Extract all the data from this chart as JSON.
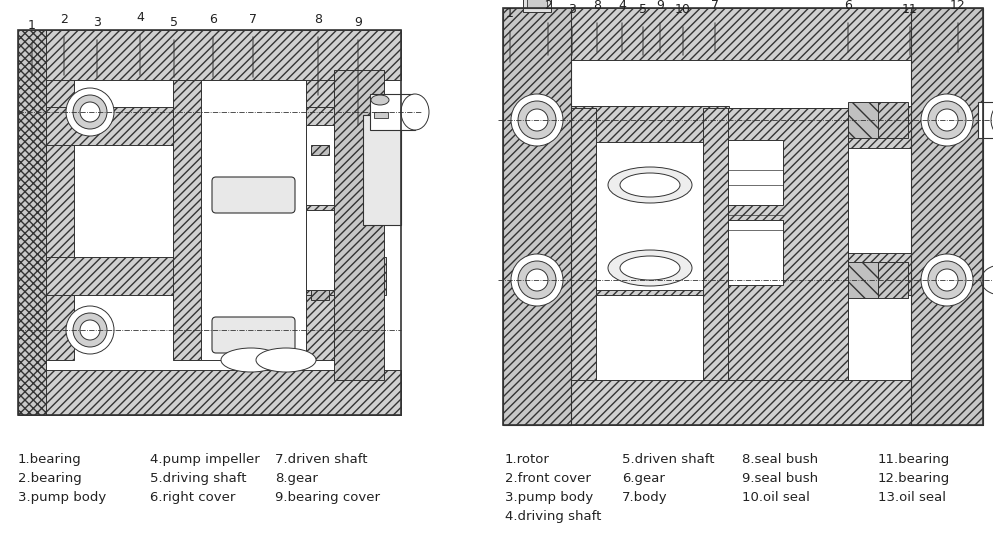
{
  "bg_color": "#ffffff",
  "fig_width": 9.93,
  "fig_height": 5.42,
  "line_color": "#333333",
  "text_color": "#222222",
  "label_fontsize": 9.5,
  "left_labels": [
    [
      "1.bearing",
      "4.pump impeller",
      "7.driven shaft"
    ],
    [
      "2.bearing",
      "5.driving shaft",
      "8.gear"
    ],
    [
      "3.pump body",
      "6.right cover",
      "9.bearing cover"
    ]
  ],
  "right_labels": [
    [
      "1.rotor",
      "5.driven shaft",
      "8.seal bush",
      "11.bearing"
    ],
    [
      "2.front cover",
      "6.gear",
      "9.seal bush",
      "12.bearing"
    ],
    [
      "3.pump body",
      "7.body",
      "10.oil seal",
      "13.oil seal"
    ],
    [
      "4.driving shaft",
      "",
      "",
      ""
    ]
  ]
}
